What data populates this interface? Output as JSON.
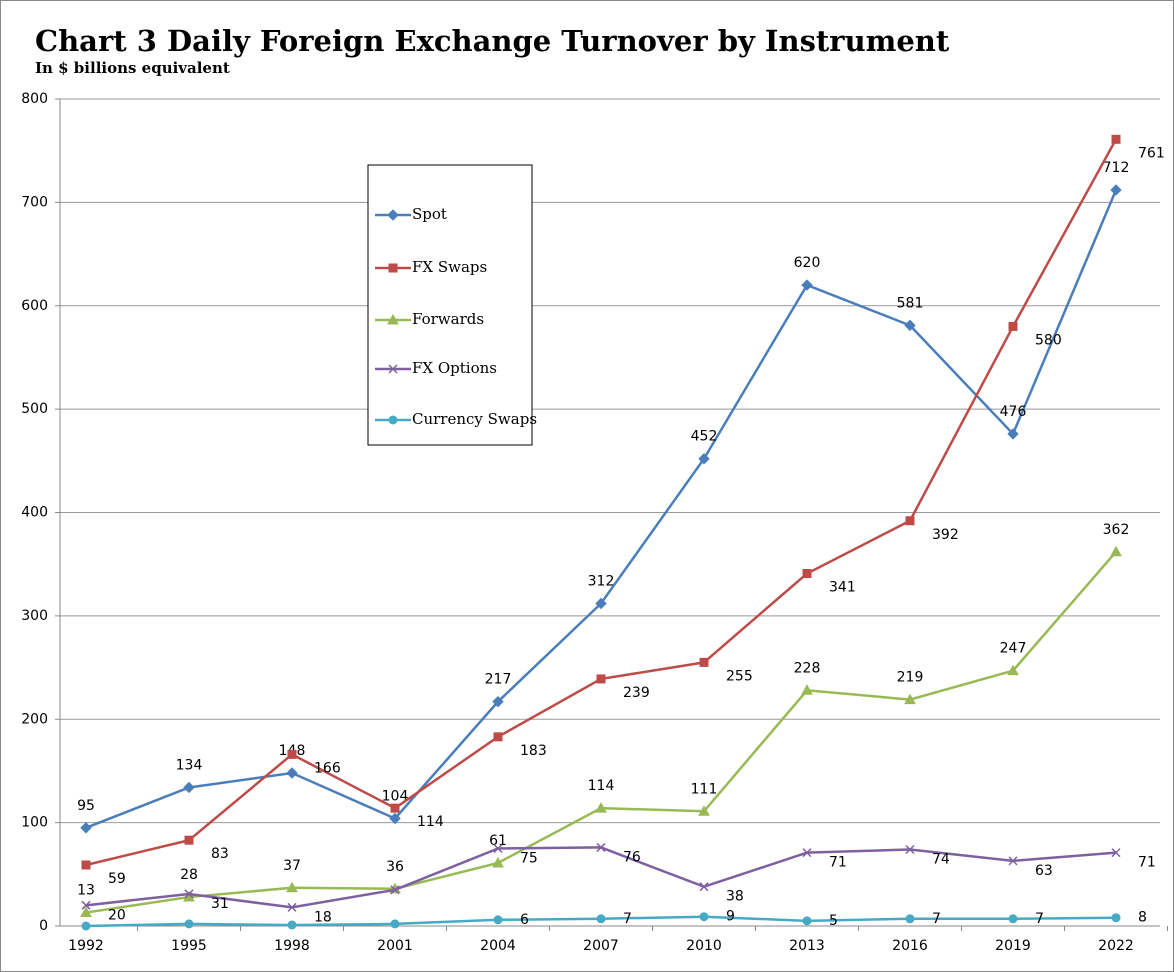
{
  "chart_data": {
    "type": "line",
    "title": "Chart 3  Daily Foreign Exchange Turnover by Instrument",
    "subtitle": "In $ billions equivalent",
    "categories": [
      "1992",
      "1995",
      "1998",
      "2001",
      "2004",
      "2007",
      "2010",
      "2013",
      "2016",
      "2019",
      "2022"
    ],
    "series": [
      {
        "name": "Spot",
        "color": "#4a7ebb",
        "marker": "diamond",
        "values": [
          95,
          134,
          148,
          104,
          217,
          312,
          452,
          620,
          581,
          476,
          712
        ]
      },
      {
        "name": "FX Swaps",
        "color": "#be4b48",
        "marker": "square",
        "values": [
          59,
          83,
          166,
          114,
          183,
          239,
          255,
          341,
          392,
          580,
          761
        ]
      },
      {
        "name": "Forwards",
        "color": "#98b954",
        "marker": "triangle",
        "values": [
          13,
          28,
          37,
          36,
          61,
          114,
          111,
          228,
          219,
          247,
          362
        ]
      },
      {
        "name": "FX Options",
        "color": "#7d60a0",
        "marker": "x",
        "values": [
          20,
          31,
          18,
          35,
          75,
          76,
          38,
          71,
          74,
          63,
          71
        ],
        "value_labels": [
          "20",
          "31",
          "18",
          null,
          "75",
          "76",
          "38",
          "71",
          "74",
          "63",
          "71"
        ]
      },
      {
        "name": "Currency Swaps",
        "color": "#46aac5",
        "marker": "circle",
        "values": [
          0,
          2,
          1,
          2,
          6,
          7,
          9,
          5,
          7,
          7,
          8
        ],
        "value_labels": [
          null,
          null,
          null,
          null,
          "6",
          "7",
          "9",
          "5",
          "7",
          "7",
          "8"
        ]
      }
    ],
    "ylim": [
      0,
      800
    ],
    "yticks": [
      0,
      100,
      200,
      300,
      400,
      500,
      600,
      700,
      800
    ],
    "grid": true
  }
}
